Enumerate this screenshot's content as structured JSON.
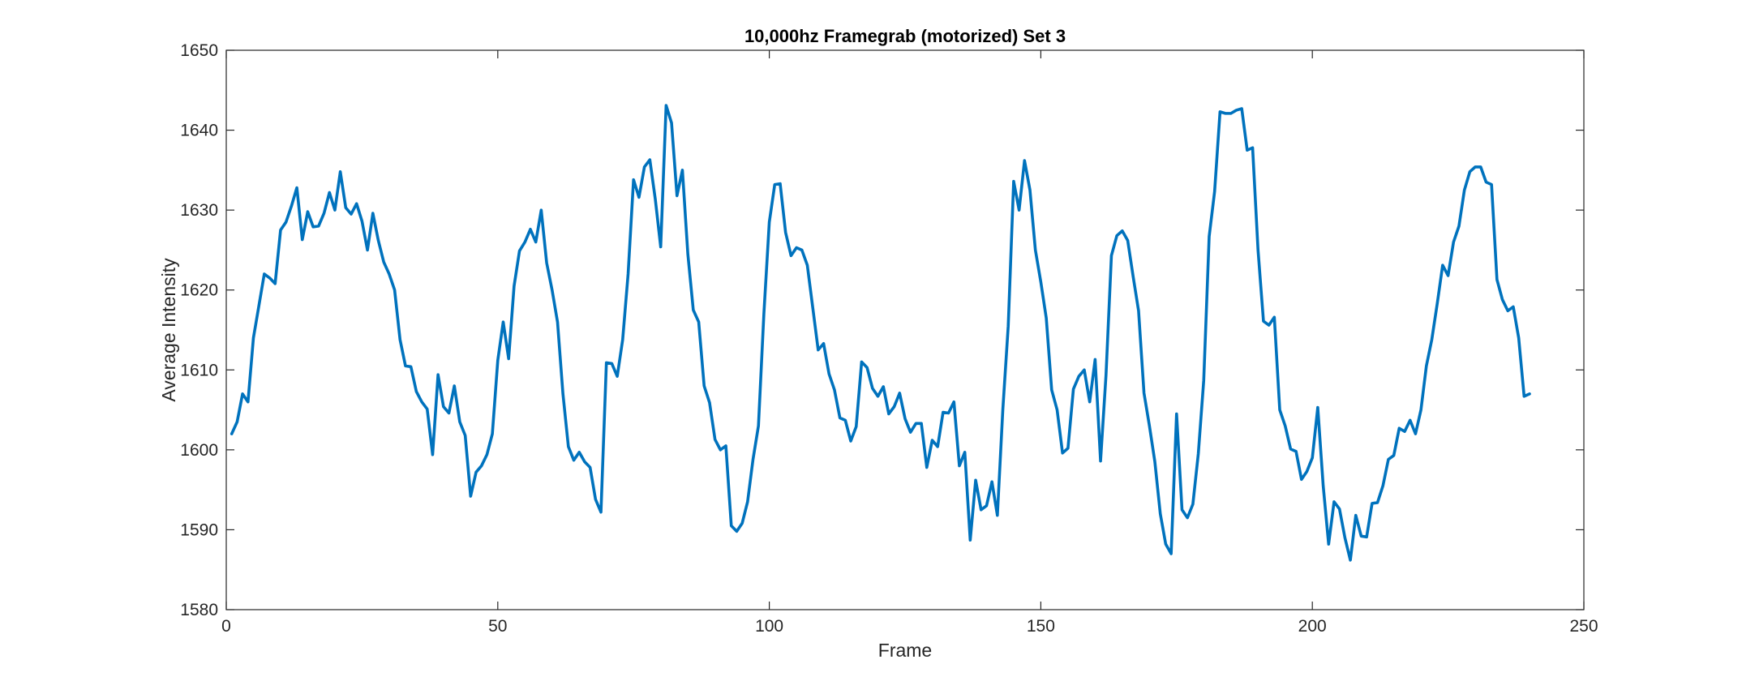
{
  "chart_data": {
    "type": "line",
    "title": "10,000hz Framegrab (motorized) Set 3",
    "xlabel": "Frame",
    "ylabel": "Average Intensity",
    "xlim": [
      0,
      250
    ],
    "ylim": [
      1580,
      1650
    ],
    "xticks": [
      0,
      50,
      100,
      150,
      200,
      250
    ],
    "yticks": [
      1580,
      1590,
      1600,
      1610,
      1620,
      1630,
      1640,
      1650
    ],
    "xtick_labels": [
      "0",
      "50",
      "100",
      "150",
      "200",
      "250"
    ],
    "ytick_labels": [
      "1580",
      "1590",
      "1600",
      "1610",
      "1620",
      "1630",
      "1640",
      "1650"
    ],
    "grid": false,
    "box": true,
    "line_color": "#0072BD",
    "axis_color": "#262626",
    "series": [
      {
        "x": [
          1,
          2,
          3,
          4,
          5,
          6,
          7,
          8,
          9,
          10,
          11,
          12,
          13,
          14,
          15,
          16,
          17,
          18,
          19,
          20,
          21,
          22,
          23,
          24,
          25,
          26,
          27,
          28,
          29,
          30,
          31,
          32,
          33,
          34,
          35,
          36,
          37,
          38,
          39,
          40,
          41,
          42,
          43,
          44,
          45,
          46,
          47,
          48,
          49,
          50,
          51,
          52,
          53,
          54,
          55,
          56,
          57,
          58,
          59,
          60,
          61,
          62,
          63,
          64,
          65,
          66,
          67,
          68,
          69,
          70,
          71,
          72,
          73,
          74,
          75,
          76,
          77,
          78,
          79,
          80,
          81,
          82,
          83,
          84,
          85,
          86,
          87,
          88,
          89,
          90,
          91,
          92,
          93,
          94,
          95,
          96,
          97,
          98,
          99,
          100,
          101,
          102,
          103,
          104,
          105,
          106,
          107,
          108,
          109,
          110,
          111,
          112,
          113,
          114,
          115,
          116,
          117,
          118,
          119,
          120,
          121,
          122,
          123,
          124,
          125,
          126,
          127,
          128,
          129,
          130,
          131,
          132,
          133,
          134,
          135,
          136,
          137,
          138,
          139,
          140,
          141,
          142,
          143,
          144,
          145,
          146,
          147,
          148,
          149,
          150,
          151,
          152,
          153,
          154,
          155,
          156,
          157,
          158,
          159,
          160,
          161,
          162,
          163,
          164,
          165,
          166,
          167,
          168,
          169,
          170,
          171,
          172,
          173,
          174,
          175,
          176,
          177,
          178,
          179,
          180,
          181,
          182,
          183,
          184,
          185,
          186,
          187,
          188,
          189,
          190,
          191,
          192,
          193,
          194,
          195,
          196,
          197,
          198,
          199,
          200,
          201,
          202,
          203,
          204,
          205,
          206,
          207,
          208,
          209,
          210,
          211,
          212,
          213,
          214,
          215,
          216,
          217,
          218,
          219,
          220,
          221,
          222,
          223,
          224,
          225,
          226,
          227,
          228,
          229,
          230,
          231,
          232,
          233,
          234,
          235,
          236,
          237,
          238,
          239,
          240
        ],
        "y": [
          1602.0,
          1603.5,
          1607.0,
          1606.0,
          1614.0,
          1618.0,
          1622.0,
          1621.5,
          1620.8,
          1627.5,
          1628.5,
          1630.5,
          1632.8,
          1626.3,
          1629.8,
          1627.9,
          1628.0,
          1629.6,
          1632.2,
          1630.0,
          1634.8,
          1630.3,
          1629.5,
          1630.8,
          1628.6,
          1625.0,
          1629.6,
          1626.2,
          1623.5,
          1622.0,
          1620.0,
          1613.8,
          1610.5,
          1610.4,
          1607.3,
          1606.0,
          1605.1,
          1599.4,
          1609.4,
          1605.4,
          1604.6,
          1608.0,
          1603.5,
          1601.8,
          1594.2,
          1597.2,
          1598.0,
          1599.4,
          1602.0,
          1611.2,
          1616.0,
          1611.4,
          1620.5,
          1624.9,
          1626.0,
          1627.6,
          1626.0,
          1630.0,
          1623.4,
          1620.0,
          1616.0,
          1607.0,
          1600.4,
          1598.7,
          1599.7,
          1598.5,
          1597.8,
          1593.8,
          1592.2,
          1610.9,
          1610.8,
          1609.2,
          1613.8,
          1622.0,
          1633.8,
          1631.6,
          1635.4,
          1636.3,
          1631.4,
          1625.4,
          1643.1,
          1640.9,
          1631.8,
          1635.0,
          1624.5,
          1617.5,
          1616.0,
          1608.0,
          1605.9,
          1601.3,
          1600.0,
          1600.5,
          1590.5,
          1589.8,
          1590.8,
          1593.5,
          1598.8,
          1603.0,
          1617.0,
          1628.5,
          1633.2,
          1633.3,
          1627.2,
          1624.3,
          1625.3,
          1625.0,
          1623.1,
          1617.8,
          1612.5,
          1613.3,
          1609.5,
          1607.5,
          1604.0,
          1603.7,
          1601.1,
          1602.9,
          1611.0,
          1610.3,
          1607.7,
          1606.7,
          1607.9,
          1604.5,
          1605.4,
          1607.1,
          1603.9,
          1602.2,
          1603.3,
          1603.3,
          1597.8,
          1601.2,
          1600.4,
          1604.7,
          1604.6,
          1606.0,
          1598.0,
          1599.7,
          1588.7,
          1596.2,
          1592.5,
          1593.0,
          1596.0,
          1591.8,
          1605.0,
          1615.5,
          1633.6,
          1630.0,
          1636.2,
          1632.5,
          1625.0,
          1621.0,
          1616.5,
          1607.5,
          1605.0,
          1599.6,
          1600.2,
          1607.6,
          1609.2,
          1610.0,
          1606.0,
          1611.3,
          1598.6,
          1609.3,
          1624.3,
          1626.8,
          1627.4,
          1626.2,
          1621.7,
          1617.4,
          1607.1,
          1603.0,
          1598.5,
          1592.0,
          1588.2,
          1587.0,
          1604.5,
          1592.5,
          1591.5,
          1593.2,
          1599.5,
          1608.7,
          1626.7,
          1632.3,
          1642.3,
          1642.1,
          1642.1,
          1642.5,
          1642.7,
          1637.5,
          1637.8,
          1625.0,
          1616.1,
          1615.6,
          1616.6,
          1605.0,
          1603.0,
          1600.1,
          1599.8,
          1596.3,
          1597.3,
          1599.0,
          1605.3,
          1595.5,
          1588.2,
          1593.5,
          1592.6,
          1589.0,
          1586.2,
          1591.8,
          1589.2,
          1589.1,
          1593.3,
          1593.4,
          1595.5,
          1598.8,
          1599.3,
          1602.7,
          1602.3,
          1603.7,
          1602.0,
          1605.0,
          1610.5,
          1613.8,
          1618.3,
          1623.1,
          1621.8,
          1626.0,
          1628.0,
          1632.5,
          1634.8,
          1635.4,
          1635.4,
          1633.5,
          1633.2,
          1621.3,
          1618.8,
          1617.4,
          1617.9,
          1614.0,
          1606.7,
          1607.0
        ]
      }
    ]
  }
}
